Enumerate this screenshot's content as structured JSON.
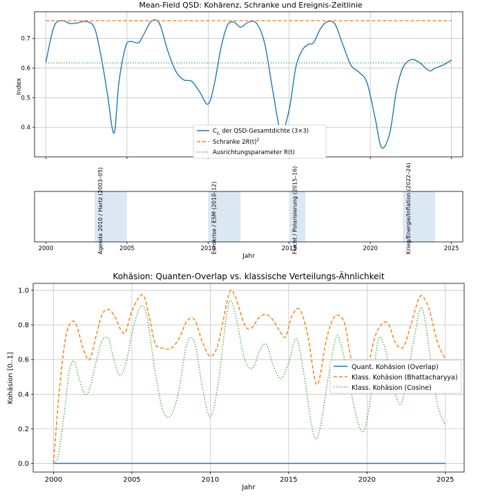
{
  "chart_data": [
    {
      "type": "line",
      "title": "Mean-Field QSD: Kohärenz, Schranke und Ereignis-Zeitlinie",
      "xlabel": "",
      "ylabel": "Index",
      "xlim": [
        1999.3,
        2025.7
      ],
      "ylim": [
        0.3,
        0.79
      ],
      "xticks": [
        2000,
        2005,
        2010,
        2015,
        2020,
        2025
      ],
      "yticks": [
        0.4,
        0.5,
        0.6,
        0.7
      ],
      "ytick_labels": [
        "0.4",
        "0.5",
        "0.6",
        "0.7"
      ],
      "grid": true,
      "legend_position": "lower-center",
      "series": [
        {
          "name": "C_{ℓ₁} der QSD-Gesamtdichte (3×3)",
          "label_main": "C",
          "label_sub": "ℓ₁",
          "label_rest": " der QSD-Gesamtdichte (3×3)",
          "color": "#1f77b4",
          "style": "solid",
          "x": [
            2000,
            2000.5,
            2001,
            2001.5,
            2002,
            2002.5,
            2003,
            2003.4,
            2003.8,
            2004.2,
            2004.5,
            2004.9,
            2005.2,
            2005.7,
            2006,
            2006.5,
            2007,
            2007.5,
            2008,
            2008.5,
            2009,
            2009.5,
            2010,
            2010.4,
            2010.8,
            2011.2,
            2011.6,
            2012,
            2012.5,
            2013,
            2013.5,
            2014,
            2014.5,
            2015,
            2015.4,
            2015.8,
            2016.2,
            2016.5,
            2016.9,
            2017.3,
            2017.8,
            2018.3,
            2018.8,
            2019.3,
            2019.8,
            2020.3,
            2020.7,
            2021.2,
            2021.6,
            2022,
            2022.5,
            2023,
            2023.4,
            2023.7,
            2024,
            2024.5,
            2025
          ],
          "y": [
            0.62,
            0.74,
            0.76,
            0.75,
            0.753,
            0.757,
            0.735,
            0.64,
            0.51,
            0.38,
            0.55,
            0.67,
            0.69,
            0.685,
            0.71,
            0.758,
            0.75,
            0.66,
            0.59,
            0.56,
            0.555,
            0.518,
            0.478,
            0.55,
            0.67,
            0.745,
            0.755,
            0.738,
            0.755,
            0.75,
            0.68,
            0.52,
            0.385,
            0.46,
            0.6,
            0.66,
            0.68,
            0.685,
            0.73,
            0.755,
            0.75,
            0.68,
            0.61,
            0.586,
            0.55,
            0.43,
            0.331,
            0.38,
            0.52,
            0.6,
            0.628,
            0.62,
            0.6,
            0.59,
            0.6,
            0.61,
            0.627
          ]
        },
        {
          "name": "Schranke 2R(t)²",
          "label_main": "Schranke 2",
          "label_italic": "R",
          "label_rest": "(t)",
          "label_sup": "2",
          "color": "#ff7f0e",
          "style": "dashed",
          "x": [
            2000,
            2025
          ],
          "y": [
            0.76,
            0.76
          ]
        },
        {
          "name": "Ausrichtungsparameter R(t)",
          "label_main": "Ausrichtungsparameter R(t)",
          "color": "#2ca02c",
          "style": "dotted",
          "x": [
            2000,
            2025
          ],
          "y": [
            0.617,
            0.617
          ]
        }
      ]
    },
    {
      "type": "timeline",
      "title": "",
      "xlabel": "Jahr",
      "xlim": [
        1999.3,
        2025.7
      ],
      "xticks": [
        2000,
        2005,
        2010,
        2015,
        2020,
        2025
      ],
      "events": [
        {
          "label": "Agenda 2010 / Hartz (2003–05)",
          "start": 2003,
          "end": 2005
        },
        {
          "label": "Eurokrise / ESM (2010–12)",
          "start": 2010,
          "end": 2012
        },
        {
          "label": "Flucht / Polarisierung (2015–16)",
          "start": 2015,
          "end": 2016
        },
        {
          "label": "Krieg/Energie/Inflation (2022–24)",
          "start": 2022,
          "end": 2024
        }
      ],
      "band_color": "#dbe7f3"
    },
    {
      "type": "line",
      "title": "Kohäsion: Quanten-Overlap vs. klassische Verteilungs-Ähnlichkeit",
      "xlabel": "Jahr",
      "ylabel": "Kohäsion [0..1]",
      "xlim": [
        1998.7,
        2026.2
      ],
      "ylim": [
        -0.05,
        1.04
      ],
      "xticks": [
        2000,
        2005,
        2010,
        2015,
        2020,
        2025
      ],
      "yticks": [
        0.0,
        0.2,
        0.4,
        0.6,
        0.8,
        1.0
      ],
      "ytick_labels": [
        "0.0",
        "0.2",
        "0.4",
        "0.6",
        "0.8",
        "1.0"
      ],
      "grid": true,
      "legend_position": "center-right",
      "series": [
        {
          "name": "Quant. Kohäsion (Overlap)",
          "color": "#1f77b4",
          "style": "solid",
          "x": [
            2000,
            2025
          ],
          "y": [
            0.0,
            0.0
          ]
        },
        {
          "name": "Klass. Kohäsion (Bhattacharyya)",
          "color": "#ff7f0e",
          "style": "dashed",
          "x": [
            2000,
            2000.4,
            2000.8,
            2001.2,
            2001.5,
            2001.9,
            2002.3,
            2002.7,
            2003.1,
            2003.5,
            2003.9,
            2004.3,
            2004.6,
            2005.0,
            2005.5,
            2005.8,
            2006.1,
            2006.5,
            2007.0,
            2007.5,
            2008.0,
            2008.5,
            2009.0,
            2009.5,
            2010.0,
            2010.5,
            2011.2,
            2011.6,
            2012.2,
            2012.6,
            2013.1,
            2013.5,
            2013.9,
            2014.4,
            2014.8,
            2015.2,
            2015.7,
            2016.2,
            2016.8,
            2017.4,
            2017.8,
            2018.2,
            2018.6,
            2019.0,
            2019.5,
            2020.0,
            2020.5,
            2021.0,
            2021.4,
            2021.8,
            2022.3,
            2022.8,
            2023.3,
            2023.6,
            2024.0,
            2024.5,
            2025.0
          ],
          "y": [
            0.0,
            0.45,
            0.74,
            0.82,
            0.79,
            0.66,
            0.6,
            0.73,
            0.86,
            0.89,
            0.85,
            0.77,
            0.76,
            0.88,
            0.965,
            0.96,
            0.85,
            0.69,
            0.665,
            0.665,
            0.72,
            0.82,
            0.83,
            0.7,
            0.62,
            0.69,
            0.98,
            0.96,
            0.8,
            0.78,
            0.84,
            0.86,
            0.84,
            0.77,
            0.73,
            0.85,
            0.89,
            0.75,
            0.455,
            0.71,
            0.83,
            0.855,
            0.8,
            0.6,
            0.52,
            0.54,
            0.73,
            0.81,
            0.8,
            0.7,
            0.67,
            0.8,
            0.95,
            0.96,
            0.88,
            0.7,
            0.6
          ]
        },
        {
          "name": "Klass. Kohäsion (Cosine)",
          "color": "#2ca02c",
          "style": "dotted",
          "x": [
            2000,
            2000.3,
            2000.7,
            2001.0,
            2001.3,
            2001.6,
            2002.0,
            2002.3,
            2002.7,
            2003.1,
            2003.5,
            2003.8,
            2004.2,
            2004.6,
            2005.0,
            2005.4,
            2005.7,
            2006.0,
            2006.5,
            2007.0,
            2007.5,
            2008.0,
            2008.5,
            2009.0,
            2009.5,
            2010.0,
            2010.5,
            2011.0,
            2011.3,
            2011.7,
            2012.2,
            2012.7,
            2013.2,
            2013.6,
            2014.0,
            2014.5,
            2015.0,
            2015.5,
            2016.0,
            2016.6,
            2017.0,
            2017.5,
            2018.0,
            2018.3,
            2018.8,
            2019.3,
            2019.8,
            2020.3,
            2020.7,
            2021.1,
            2021.6,
            2022.1,
            2022.5,
            2023.0,
            2023.5,
            2024.0,
            2024.5,
            2025.0
          ],
          "y": [
            0.0,
            0.05,
            0.3,
            0.53,
            0.59,
            0.5,
            0.4,
            0.43,
            0.58,
            0.71,
            0.72,
            0.62,
            0.51,
            0.57,
            0.75,
            0.88,
            0.91,
            0.83,
            0.52,
            0.3,
            0.28,
            0.42,
            0.69,
            0.7,
            0.44,
            0.27,
            0.46,
            0.83,
            0.94,
            0.82,
            0.6,
            0.55,
            0.66,
            0.685,
            0.57,
            0.49,
            0.58,
            0.72,
            0.5,
            0.165,
            0.2,
            0.48,
            0.72,
            0.7,
            0.5,
            0.28,
            0.185,
            0.42,
            0.71,
            0.68,
            0.48,
            0.34,
            0.46,
            0.72,
            0.9,
            0.64,
            0.34,
            0.22
          ]
        }
      ]
    }
  ]
}
